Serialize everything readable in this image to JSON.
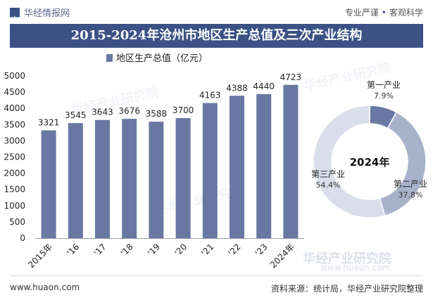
{
  "header": {
    "brand": "华经情报网",
    "slogan_left": "专业严谨",
    "slogan_sep": "•",
    "slogan_right": "客观科学"
  },
  "title": "2015-2024年沧州市地区生产总值及三次产业结构",
  "footer": {
    "site": "www.huaon.com",
    "source": "资料来源：统计局，华经产业研究院整理",
    "logo_name": "华经产业研究院",
    "logo_site": "www.huaon.com"
  },
  "watermark_text": "华经产业研究院",
  "chart_data": [
    {
      "type": "bar",
      "legend": "地区生产总值（亿元）",
      "legend_position": "top",
      "categories": [
        "2015年",
        "'16",
        "'17",
        "'18",
        "'19",
        "'20",
        "'21",
        "'22",
        "'23",
        "2024年"
      ],
      "values": [
        3321,
        3545,
        3643,
        3676,
        3588,
        3700,
        4163,
        4388,
        4440,
        4723
      ],
      "ylim": [
        0,
        5000
      ],
      "yticks": [
        0,
        500,
        1000,
        1500,
        2000,
        2500,
        3000,
        3500,
        4000,
        4500,
        5000
      ],
      "color": "#6878a2"
    },
    {
      "type": "pie",
      "center_label": "2024年",
      "slices": [
        {
          "name": "第一产业",
          "value": 7.9,
          "label": "7.9%",
          "color": "#6878a2"
        },
        {
          "name": "第二产业",
          "value": 37.8,
          "label": "37.8%",
          "color": "#a8b2ca"
        },
        {
          "name": "第三产业",
          "value": 54.4,
          "label": "54.4%",
          "color": "#d9deea"
        }
      ]
    }
  ]
}
